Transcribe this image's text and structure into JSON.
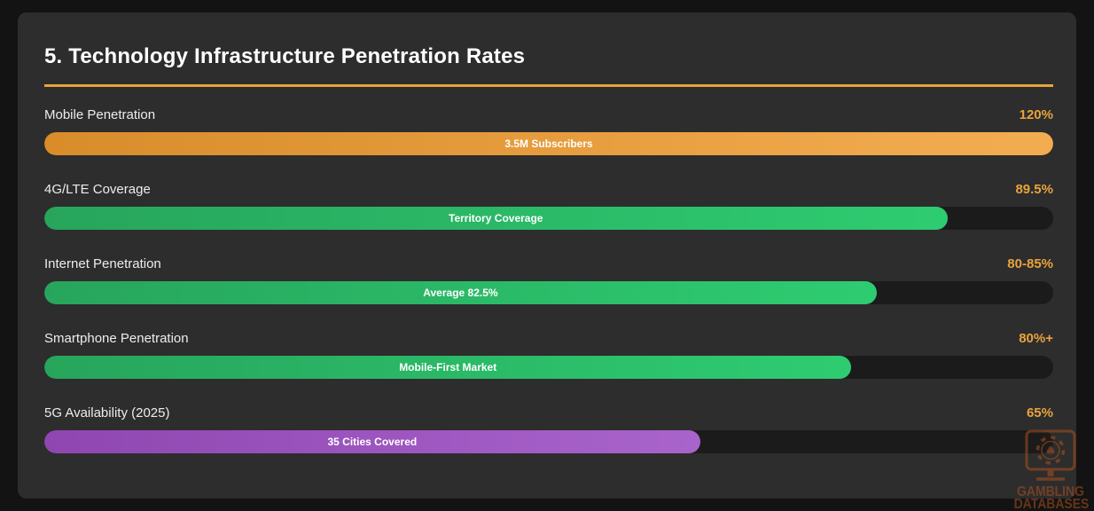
{
  "colors": {
    "page_bg": "#131313",
    "card_bg": "#2d2d2d",
    "accent": "#e9a33c",
    "track": "#1b1b1b",
    "label_text": "#ededed",
    "bar_text": "#ffffff",
    "watermark": "#a9511f"
  },
  "card": {
    "title": "5. Technology Infrastructure Penetration Rates"
  },
  "chart_data": {
    "type": "bar",
    "orientation": "horizontal",
    "title": "5. Technology Infrastructure Penetration Rates",
    "xlabel": "",
    "ylabel": "",
    "value_axis": {
      "min": 0,
      "max": 100,
      "unit": "%",
      "gridlines": false
    },
    "legend": null,
    "categories": [
      "Mobile Penetration",
      "4G/LTE Coverage",
      "Internet Penetration",
      "Smartphone Penetration",
      "5G Availability (2025)"
    ],
    "values": [
      120,
      89.5,
      82.5,
      80,
      65
    ],
    "bars": [
      {
        "label": "Mobile Penetration",
        "value_label": "120%",
        "value": 120,
        "fill_pct": 100,
        "bar_text": "3.5M Subscribers",
        "color_start": "#d98c2a",
        "color_end": "#f3ad51"
      },
      {
        "label": "4G/LTE Coverage",
        "value_label": "89.5%",
        "value": 89.5,
        "fill_pct": 89.5,
        "bar_text": "Territory Coverage",
        "color_start": "#27a55c",
        "color_end": "#2ecc71"
      },
      {
        "label": "Internet Penetration",
        "value_label": "80-85%",
        "value": 82.5,
        "fill_pct": 82.5,
        "bar_text": "Average 82.5%",
        "color_start": "#27a55c",
        "color_end": "#2ecc71"
      },
      {
        "label": "Smartphone Penetration",
        "value_label": "80%+",
        "value": 80,
        "fill_pct": 80,
        "bar_text": "Mobile-First Market",
        "color_start": "#27a55c",
        "color_end": "#2ecc71"
      },
      {
        "label": "5G Availability (2025)",
        "value_label": "65%",
        "value": 65,
        "fill_pct": 65,
        "bar_text": "35 Cities Covered",
        "color_start": "#8f46b0",
        "color_end": "#a964cc"
      }
    ]
  },
  "watermark": {
    "icon": "monitor-casino-chip-spade-icon",
    "line1": "GAMBLING",
    "line2": "DATABASES"
  }
}
